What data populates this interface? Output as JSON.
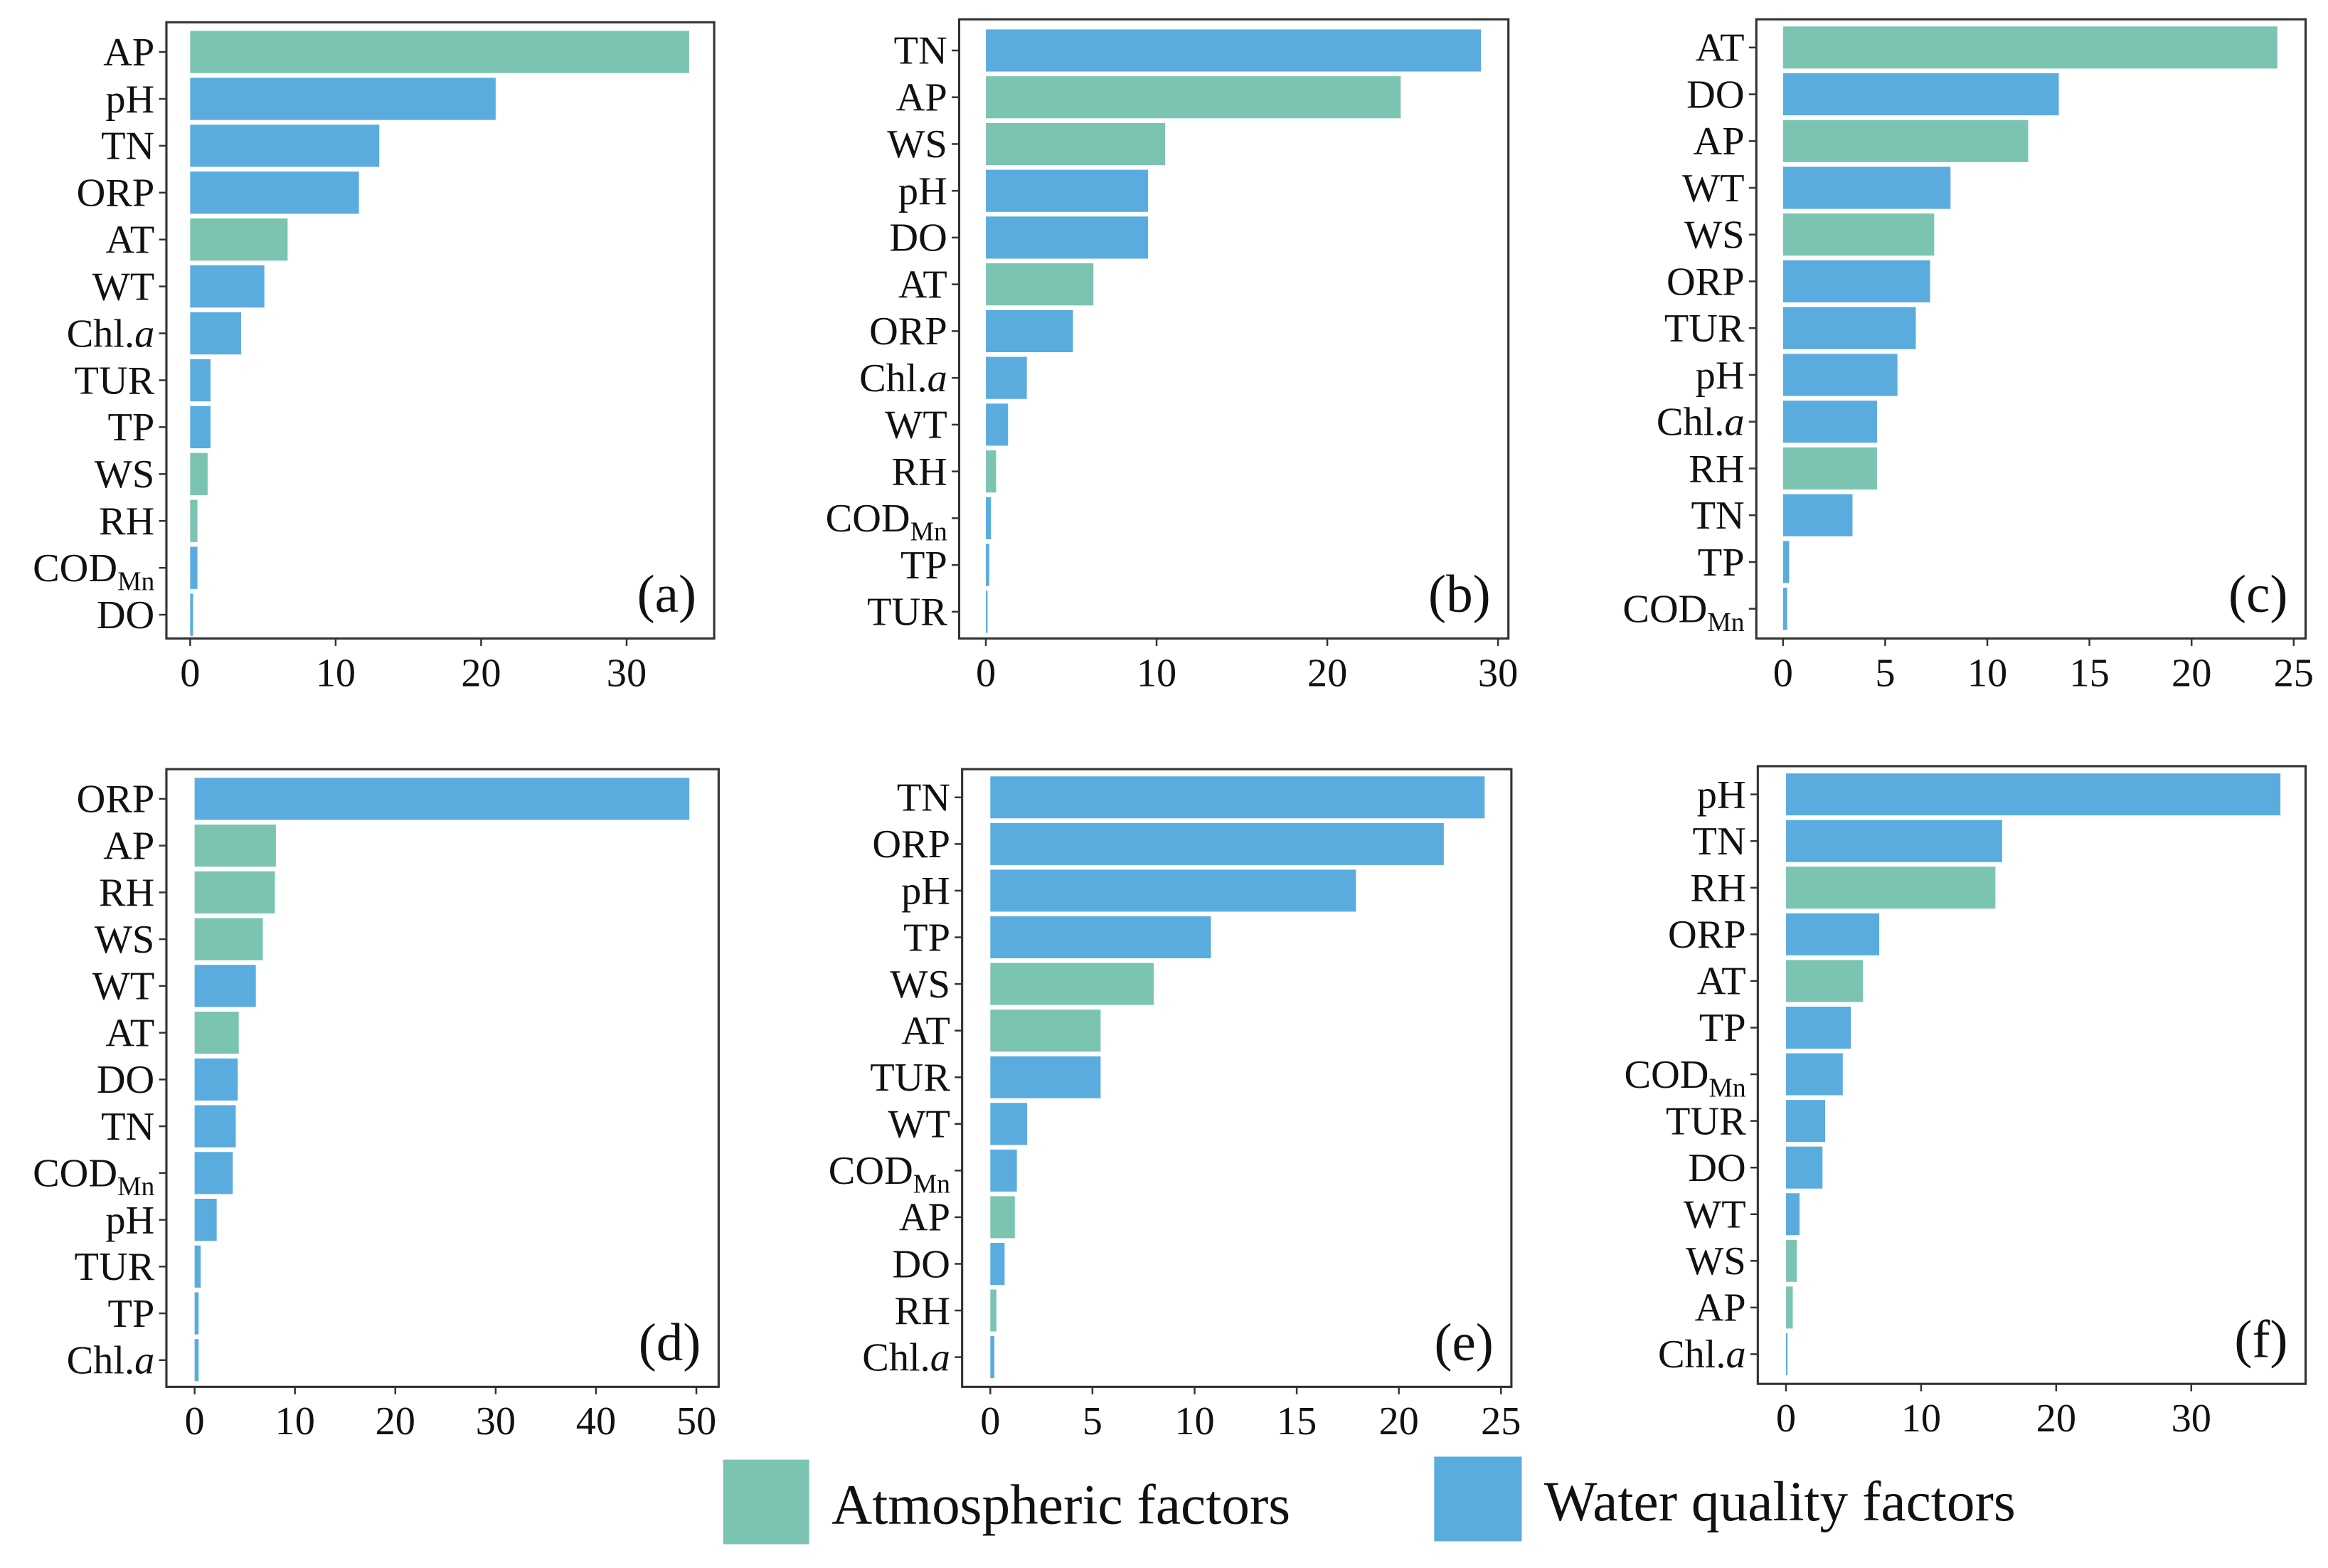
{
  "colors": {
    "atmospheric": "#7cc4b2",
    "water": "#5aacdf"
  },
  "legend": [
    {
      "label": "Atmospheric factors",
      "group": "atmospheric"
    },
    {
      "label": "Water quality factors",
      "group": "water"
    }
  ],
  "groups": {
    "AP": "atmospheric",
    "AT": "atmospheric",
    "WS": "atmospheric",
    "RH": "atmospheric",
    "pH": "water",
    "TN": "water",
    "ORP": "water",
    "WT": "water",
    "Chl.a": "water",
    "TUR": "water",
    "TP": "water",
    "CODMn": "water",
    "DO": "water"
  },
  "chart_data": [
    {
      "type": "bar",
      "orientation": "horizontal",
      "panel_label": "(a)",
      "xlim": [
        0,
        37
      ],
      "xticks": [
        0,
        10,
        20,
        30
      ],
      "categories": [
        "AP",
        "pH",
        "TN",
        "ORP",
        "AT",
        "WT",
        "Chl.a",
        "TUR",
        "TP",
        "WS",
        "RH",
        "CODMn",
        "DO"
      ],
      "values": [
        34.3,
        21.0,
        13.0,
        11.6,
        6.7,
        5.1,
        3.5,
        1.4,
        1.4,
        1.2,
        0.5,
        0.5,
        0.2
      ]
    },
    {
      "type": "bar",
      "orientation": "horizontal",
      "panel_label": "(b)",
      "xlim": [
        0,
        30.5
      ],
      "xticks": [
        0,
        10,
        20,
        30
      ],
      "categories": [
        "TN",
        "AP",
        "WS",
        "pH",
        "DO",
        "AT",
        "ORP",
        "Chl.a",
        "WT",
        "RH",
        "CODMn",
        "TP",
        "TUR"
      ],
      "values": [
        29.0,
        24.3,
        10.5,
        9.5,
        9.5,
        6.3,
        5.1,
        2.4,
        1.3,
        0.6,
        0.3,
        0.2,
        0.1
      ]
    },
    {
      "type": "bar",
      "orientation": "horizontal",
      "panel_label": "(c)",
      "xlim": [
        0,
        25.5
      ],
      "xticks": [
        0,
        5,
        10,
        15,
        20,
        25
      ],
      "categories": [
        "AT",
        "DO",
        "AP",
        "WT",
        "WS",
        "ORP",
        "TUR",
        "pH",
        "Chl.a",
        "RH",
        "TN",
        "TP",
        "CODMn"
      ],
      "values": [
        24.2,
        13.5,
        12.0,
        8.2,
        7.4,
        7.2,
        6.5,
        5.6,
        4.6,
        4.6,
        3.4,
        0.3,
        0.2
      ]
    },
    {
      "type": "bar",
      "orientation": "horizontal",
      "panel_label": "(d)",
      "xlim": [
        0,
        52
      ],
      "xticks": [
        0,
        10,
        20,
        30,
        40,
        50
      ],
      "categories": [
        "ORP",
        "AP",
        "RH",
        "WS",
        "WT",
        "AT",
        "DO",
        "TN",
        "CODMn",
        "pH",
        "TUR",
        "TP",
        "Chl.a"
      ],
      "values": [
        49.3,
        8.1,
        8.0,
        6.8,
        6.1,
        4.4,
        4.3,
        4.1,
        3.8,
        2.2,
        0.6,
        0.4,
        0.4
      ]
    },
    {
      "type": "bar",
      "orientation": "horizontal",
      "panel_label": "(e)",
      "xlim": [
        0,
        25.5
      ],
      "xticks": [
        0,
        5,
        10,
        15,
        20,
        25
      ],
      "categories": [
        "TN",
        "ORP",
        "pH",
        "TP",
        "WS",
        "AT",
        "TUR",
        "WT",
        "CODMn",
        "AP",
        "DO",
        "RH",
        "Chl.a"
      ],
      "values": [
        24.2,
        22.2,
        17.9,
        10.8,
        8.0,
        5.4,
        5.4,
        1.8,
        1.3,
        1.2,
        0.7,
        0.3,
        0.2
      ]
    },
    {
      "type": "bar",
      "orientation": "horizontal",
      "panel_label": "(f)",
      "xlim": [
        0,
        38.5
      ],
      "xticks": [
        0,
        10,
        20,
        30
      ],
      "categories": [
        "pH",
        "TN",
        "RH",
        "ORP",
        "AT",
        "TP",
        "CODMn",
        "TUR",
        "DO",
        "WT",
        "WS",
        "AP",
        "Chl.a"
      ],
      "values": [
        36.6,
        16.0,
        15.5,
        6.9,
        5.7,
        4.8,
        4.2,
        2.9,
        2.7,
        1.0,
        0.8,
        0.5,
        0.1
      ]
    }
  ]
}
